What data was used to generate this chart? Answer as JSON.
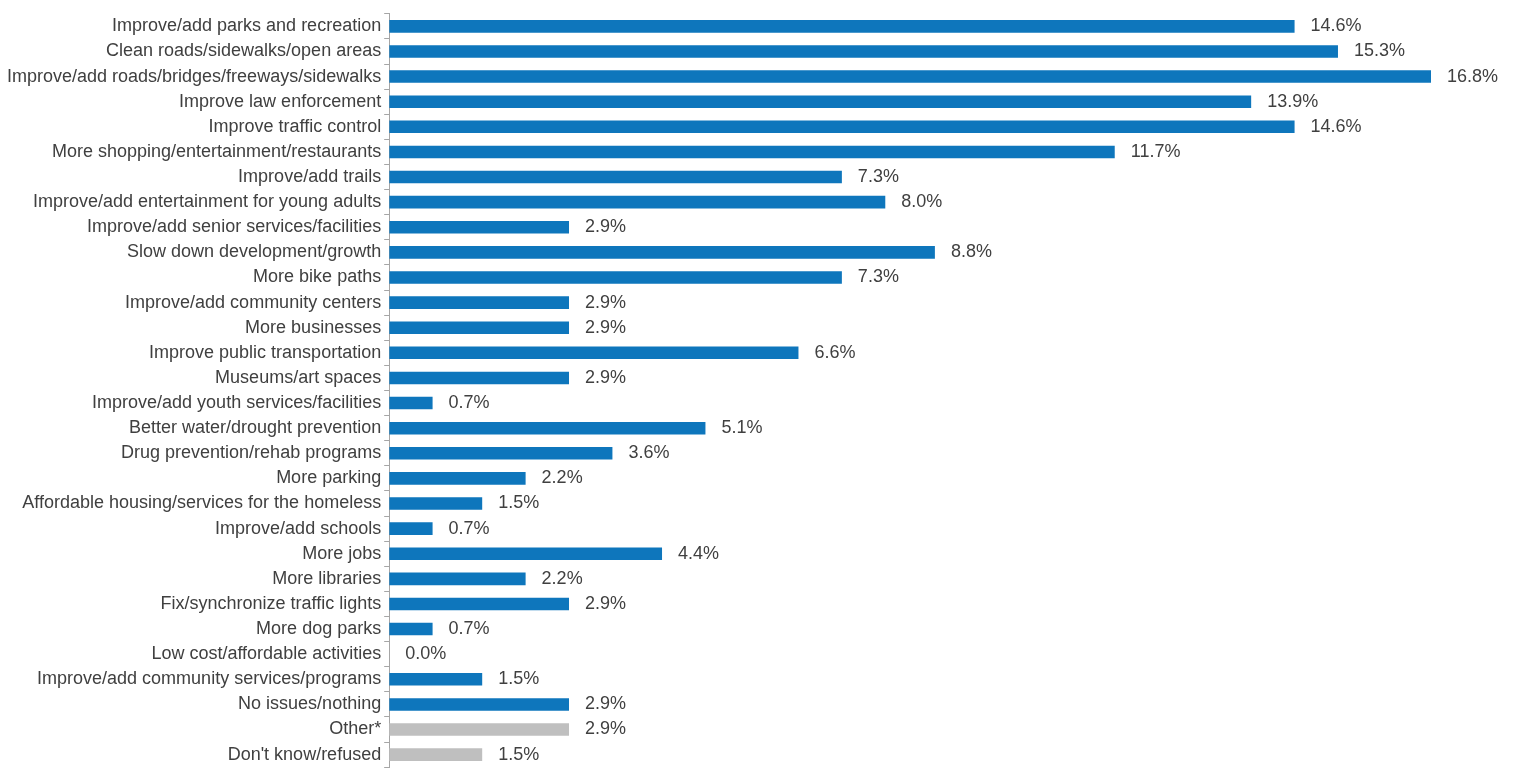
{
  "chart_data": {
    "type": "bar",
    "orientation": "horizontal",
    "categories": [
      "Improve/add parks and recreation",
      "Clean roads/sidewalks/open areas",
      "Improve/add roads/bridges/freeways/sidewalks",
      "Improve law enforcement",
      "Improve traffic control",
      "More shopping/entertainment/restaurants",
      "Improve/add trails",
      "Improve/add entertainment for young adults",
      "Improve/add senior services/facilities",
      "Slow down development/growth",
      "More bike paths",
      "Improve/add community centers",
      "More businesses",
      "Improve public transportation",
      "Museums/art spaces",
      "Improve/add youth services/facilities",
      "Better water/drought prevention",
      "Drug prevention/rehab programs",
      "More parking",
      "Affordable housing/services for the homeless",
      "Improve/add schools",
      "More jobs",
      "More libraries",
      "Fix/synchronize traffic lights",
      "More dog parks",
      "Low cost/affordable activities",
      "Improve/add community services/programs",
      "No issues/nothing",
      "Other*",
      "Don't know/refused"
    ],
    "values": [
      14.6,
      15.3,
      16.8,
      13.9,
      14.6,
      11.7,
      7.3,
      8.0,
      2.9,
      8.8,
      7.3,
      2.9,
      2.9,
      6.6,
      2.9,
      0.7,
      5.1,
      3.6,
      2.2,
      1.5,
      0.7,
      4.4,
      2.2,
      2.9,
      0.7,
      0.0,
      1.5,
      2.9,
      2.9,
      1.5
    ],
    "value_labels": [
      "14.6%",
      "15.3%",
      "16.8%",
      "13.9%",
      "14.6%",
      "11.7%",
      "7.3%",
      "8.0%",
      "2.9%",
      "8.8%",
      "7.3%",
      "2.9%",
      "2.9%",
      "6.6%",
      "2.9%",
      "0.7%",
      "5.1%",
      "3.6%",
      "2.2%",
      "1.5%",
      "0.7%",
      "4.4%",
      "2.2%",
      "2.9%",
      "0.7%",
      "0.0%",
      "1.5%",
      "2.9%",
      "2.9%",
      "1.5%"
    ],
    "colors": [
      "#0e76bc",
      "#0e76bc",
      "#0e76bc",
      "#0e76bc",
      "#0e76bc",
      "#0e76bc",
      "#0e76bc",
      "#0e76bc",
      "#0e76bc",
      "#0e76bc",
      "#0e76bc",
      "#0e76bc",
      "#0e76bc",
      "#0e76bc",
      "#0e76bc",
      "#0e76bc",
      "#0e76bc",
      "#0e76bc",
      "#0e76bc",
      "#0e76bc",
      "#0e76bc",
      "#0e76bc",
      "#0e76bc",
      "#0e76bc",
      "#0e76bc",
      "#0e76bc",
      "#0e76bc",
      "#0e76bc",
      "#bfbfbf",
      "#bfbfbf"
    ],
    "grid": false,
    "legend": false
  }
}
